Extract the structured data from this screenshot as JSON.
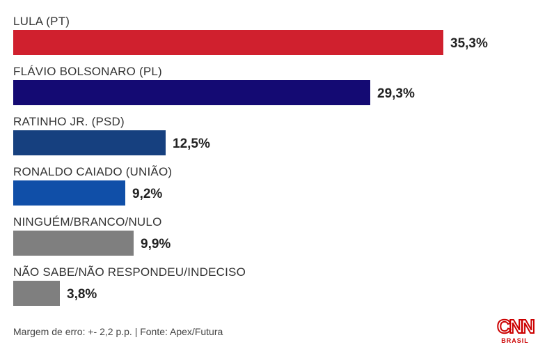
{
  "chart_data": {
    "type": "bar",
    "orientation": "horizontal",
    "categories": [
      "LULA (PT)",
      "FLÁVIO BOLSONARO (PL)",
      "RATINHO JR. (PSD)",
      "RONALDO CAIADO (UNIÃO)",
      "NINGUÉM/BRANCO/NULO",
      "NÃO SABE/NÃO RESPONDEU/INDECISO"
    ],
    "values": [
      35.3,
      29.3,
      12.5,
      9.2,
      9.9,
      3.8
    ],
    "value_labels": [
      "35,3%",
      "29,3%",
      "12,5%",
      "9,2%",
      "9,9%",
      "3,8%"
    ],
    "colors": [
      "#d0202e",
      "#140a73",
      "#16407f",
      "#104fa8",
      "#7f7f7f",
      "#7f7f7f"
    ],
    "xlim": [
      0,
      35.3
    ],
    "grid": false,
    "legend": "none"
  },
  "footer": {
    "note": "Margem de erro: +- 2,2 p.p. | Fonte: Apex/Futura"
  },
  "logo": {
    "word": "CNN",
    "sub": "BRASIL"
  }
}
